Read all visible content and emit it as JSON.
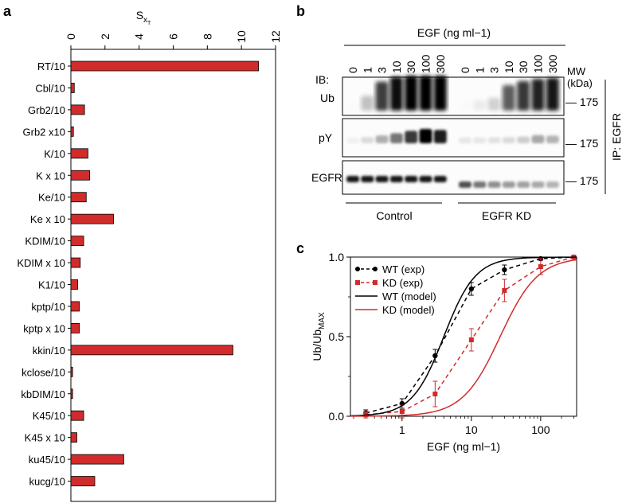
{
  "panels": {
    "a": {
      "label": "a"
    },
    "b": {
      "label": "b"
    },
    "c": {
      "label": "c"
    }
  },
  "chart_data": [
    {
      "panel": "a",
      "type": "bar",
      "orientation": "horizontal",
      "xlabel_main": "S",
      "xlabel_sub": "x",
      "xlabel_subsub": "T",
      "xlim": [
        0,
        12
      ],
      "xticks": [
        0,
        2,
        4,
        6,
        8,
        10,
        12
      ],
      "categories": [
        "RT/10",
        "Cbl/10",
        "Grb2/10",
        "Grb2 x10",
        "K/10",
        "K x 10",
        "Ke/10",
        "Ke x 10",
        "KDIM/10",
        "KDIM x 10",
        "K1/10",
        "kptp/10",
        "kptp x 10",
        "kkin/10",
        "kclose/10",
        "kbDIM/10",
        "K45/10",
        "K45 x 10",
        "ku45/10",
        "kucg/10"
      ],
      "values": [
        11.0,
        0.2,
        0.8,
        0.15,
        1.0,
        1.1,
        0.9,
        2.5,
        0.75,
        0.55,
        0.4,
        0.5,
        0.5,
        9.5,
        0.1,
        0.1,
        0.75,
        0.35,
        3.1,
        1.4
      ],
      "bar_color": "#d12b2b"
    },
    {
      "panel": "c",
      "type": "line",
      "xscale": "log",
      "xlabel": "EGF (ng ml−1)",
      "ylabel_main": "Ub/Ub",
      "ylabel_sub": "MAX",
      "xlim": [
        0.18,
        330
      ],
      "ylim": [
        0,
        1.0
      ],
      "xtick_values": [
        1,
        10,
        100
      ],
      "xtick_labels": [
        "1",
        "10",
        "100"
      ],
      "yticks": [
        0.0,
        0.5,
        1.0
      ],
      "ytick_labels": [
        "0.0",
        "0.5",
        "1.0"
      ],
      "legend_position": "top-left",
      "series": [
        {
          "name": "WT (exp)",
          "color": "#000000",
          "style": "dashed-markers",
          "marker": "circle",
          "x": [
            0.3,
            1,
            3,
            10,
            30,
            100,
            300
          ],
          "y": [
            0.02,
            0.08,
            0.38,
            0.8,
            0.92,
            0.99,
            1.0
          ],
          "err": [
            0.02,
            0.03,
            0.04,
            0.04,
            0.03,
            0.01,
            0.0
          ]
        },
        {
          "name": "KD (exp)",
          "color": "#d12b2b",
          "style": "dashed-markers",
          "marker": "square",
          "x": [
            0.3,
            1,
            3,
            10,
            30,
            100,
            300
          ],
          "y": [
            0.01,
            0.03,
            0.14,
            0.48,
            0.79,
            0.94,
            1.0
          ],
          "err": [
            0.02,
            0.04,
            0.08,
            0.07,
            0.07,
            0.05,
            0.01
          ]
        },
        {
          "name": "WT (model)",
          "color": "#000000",
          "style": "solid",
          "model": {
            "ec50": 4.0,
            "hill": 1.9
          }
        },
        {
          "name": "KD (model)",
          "color": "#d12b2b",
          "style": "solid",
          "model": {
            "ec50": 26.0,
            "hill": 1.6
          }
        }
      ]
    }
  ],
  "blot": {
    "header": "EGF (ng ml−1)",
    "doses": [
      "0",
      "1",
      "3",
      "10",
      "30",
      "100",
      "300",
      "0",
      "1",
      "3",
      "10",
      "30",
      "100",
      "300"
    ],
    "mw_header_line1": "MW",
    "mw_header_line2": "(kDa)",
    "ib_prefix": "IB:",
    "rows": [
      {
        "label": "Ub",
        "mw": "— 175",
        "intensity": [
          0.02,
          0.25,
          0.78,
          0.96,
          1.0,
          1.0,
          1.0,
          0.02,
          0.08,
          0.18,
          0.65,
          0.8,
          0.88,
          0.92
        ]
      },
      {
        "label": "pY",
        "mw": "— 175",
        "intensity": [
          0.06,
          0.15,
          0.32,
          0.55,
          0.8,
          1.0,
          0.9,
          0.1,
          0.1,
          0.12,
          0.15,
          0.2,
          0.35,
          0.3
        ]
      },
      {
        "label": "EGFR",
        "mw": "— 175",
        "intensity": [
          0.95,
          0.95,
          0.95,
          0.95,
          0.95,
          0.95,
          0.95,
          0.7,
          0.55,
          0.45,
          0.4,
          0.38,
          0.35,
          0.3
        ]
      }
    ],
    "groups": [
      "Control",
      "EGFR KD"
    ],
    "ip_label": "IP: EGFR"
  }
}
